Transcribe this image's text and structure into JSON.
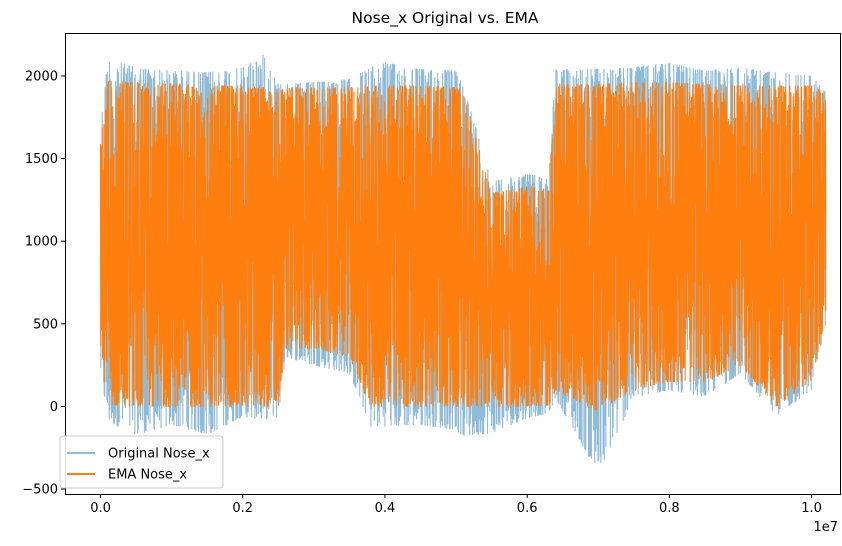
{
  "chart_data": {
    "type": "line",
    "title": "Nose_x Original vs. EMA",
    "xlabel": "",
    "ylabel": "",
    "x_offset_label": "1e7",
    "xlim": [
      -0.05,
      1.04
    ],
    "ylim": [
      -530,
      2260
    ],
    "x_ticks": [
      0.0,
      0.2,
      0.4,
      0.6,
      0.8,
      1.0
    ],
    "x_tick_labels": [
      "0.0",
      "0.2",
      "0.4",
      "0.6",
      "0.8",
      "1.0"
    ],
    "y_ticks": [
      -500,
      0,
      500,
      1000,
      1500,
      2000
    ],
    "y_tick_labels": [
      "−500",
      "0",
      "500",
      "1000",
      "1500",
      "2000"
    ],
    "legend_position": "lower left",
    "grid": false,
    "series": [
      {
        "name": "Original Nose_x",
        "color": "#1f77b4",
        "alpha": 0.5,
        "envelope_x": [
          0.0,
          0.01,
          0.05,
          0.1,
          0.15,
          0.2,
          0.23,
          0.25,
          0.26,
          0.3,
          0.35,
          0.38,
          0.4,
          0.45,
          0.5,
          0.51,
          0.55,
          0.6,
          0.63,
          0.64,
          0.7,
          0.75,
          0.8,
          0.85,
          0.9,
          0.95,
          1.0,
          1.02
        ],
        "envelope_high": [
          1700,
          2100,
          2050,
          2030,
          2020,
          2050,
          2130,
          1950,
          1950,
          1960,
          1980,
          2050,
          2080,
          2040,
          2030,
          1950,
          1360,
          1410,
          1380,
          2040,
          2040,
          2050,
          2080,
          2030,
          2050,
          2020,
          2000,
          1900
        ],
        "envelope_low": [
          200,
          -90,
          -170,
          -110,
          -170,
          -60,
          -80,
          -60,
          300,
          250,
          200,
          -120,
          -120,
          -110,
          -140,
          -180,
          -160,
          -70,
          -40,
          50,
          -400,
          50,
          100,
          60,
          200,
          -60,
          100,
          500
        ]
      },
      {
        "name": "EMA Nose_x",
        "color": "#ff7f0e",
        "alpha": 1.0,
        "envelope_x": [
          0.0,
          0.01,
          0.05,
          0.1,
          0.15,
          0.2,
          0.23,
          0.25,
          0.26,
          0.3,
          0.35,
          0.38,
          0.4,
          0.45,
          0.5,
          0.51,
          0.55,
          0.6,
          0.63,
          0.64,
          0.7,
          0.75,
          0.8,
          0.85,
          0.9,
          0.95,
          1.0,
          1.02
        ],
        "envelope_high": [
          1650,
          1970,
          1960,
          1950,
          1940,
          1940,
          1930,
          1900,
          1930,
          1930,
          1930,
          1940,
          1940,
          1940,
          1930,
          1900,
          1290,
          1330,
          1310,
          1950,
          1950,
          1960,
          1960,
          1950,
          1940,
          1940,
          1940,
          1900
        ],
        "envelope_low": [
          350,
          10,
          0,
          0,
          0,
          0,
          0,
          0,
          350,
          350,
          300,
          0,
          0,
          0,
          0,
          0,
          0,
          0,
          0,
          100,
          -30,
          100,
          150,
          150,
          250,
          0,
          150,
          550
        ]
      }
    ]
  }
}
